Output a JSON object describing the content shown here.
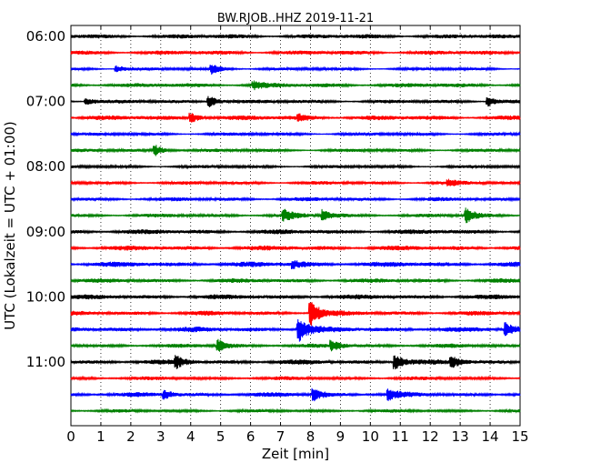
{
  "chart_data": {
    "type": "line",
    "title": "BW.RJOB..HHZ 2019-11-21",
    "xlabel": "Zeit  [min]",
    "ylabel": "UTC (Lokalzeit = UTC + 01:00)",
    "xlim": [
      0,
      15
    ],
    "x_ticks": [
      0,
      1,
      2,
      3,
      4,
      5,
      6,
      7,
      8,
      9,
      10,
      11,
      12,
      13,
      14,
      15
    ],
    "y_tick_labels": [
      "06:00",
      "07:00",
      "08:00",
      "09:00",
      "10:00",
      "11:00"
    ],
    "trace_minutes": 15,
    "trace_start_times": [
      "06:00",
      "06:15",
      "06:30",
      "06:45",
      "07:00",
      "07:15",
      "07:30",
      "07:45",
      "08:00",
      "08:15",
      "08:30",
      "08:45",
      "09:00",
      "09:15",
      "09:30",
      "09:45",
      "10:00",
      "10:15",
      "10:30",
      "10:45",
      "11:00",
      "11:15",
      "11:30",
      "11:45"
    ],
    "trace_colors": [
      "#000000",
      "#ff0000",
      "#0000ff",
      "#008000"
    ],
    "grid": {
      "x": true,
      "y": false
    },
    "events": [
      {
        "trace": 2,
        "minute": 1.5,
        "amp": 4
      },
      {
        "trace": 2,
        "minute": 4.7,
        "amp": 5
      },
      {
        "trace": 3,
        "minute": 6.1,
        "amp": 4
      },
      {
        "trace": 4,
        "minute": 0.5,
        "amp": 4
      },
      {
        "trace": 4,
        "minute": 4.6,
        "amp": 7
      },
      {
        "trace": 4,
        "minute": 13.9,
        "amp": 6
      },
      {
        "trace": 5,
        "minute": 4.0,
        "amp": 6
      },
      {
        "trace": 5,
        "minute": 7.6,
        "amp": 3
      },
      {
        "trace": 7,
        "minute": 2.8,
        "amp": 6
      },
      {
        "trace": 9,
        "minute": 12.6,
        "amp": 3
      },
      {
        "trace": 11,
        "minute": 7.1,
        "amp": 6
      },
      {
        "trace": 11,
        "minute": 8.4,
        "amp": 6
      },
      {
        "trace": 11,
        "minute": 13.2,
        "amp": 8
      },
      {
        "trace": 14,
        "minute": 7.4,
        "amp": 4
      },
      {
        "trace": 17,
        "minute": 8.0,
        "amp": 15
      },
      {
        "trace": 18,
        "minute": 7.6,
        "amp": 14
      },
      {
        "trace": 18,
        "minute": 14.5,
        "amp": 7
      },
      {
        "trace": 19,
        "minute": 4.9,
        "amp": 7
      },
      {
        "trace": 19,
        "minute": 8.7,
        "amp": 6
      },
      {
        "trace": 20,
        "minute": 3.5,
        "amp": 6
      },
      {
        "trace": 20,
        "minute": 10.8,
        "amp": 9
      },
      {
        "trace": 20,
        "minute": 12.7,
        "amp": 6
      },
      {
        "trace": 22,
        "minute": 3.1,
        "amp": 5
      },
      {
        "trace": 22,
        "minute": 8.1,
        "amp": 7
      },
      {
        "trace": 22,
        "minute": 10.6,
        "amp": 6
      }
    ]
  }
}
